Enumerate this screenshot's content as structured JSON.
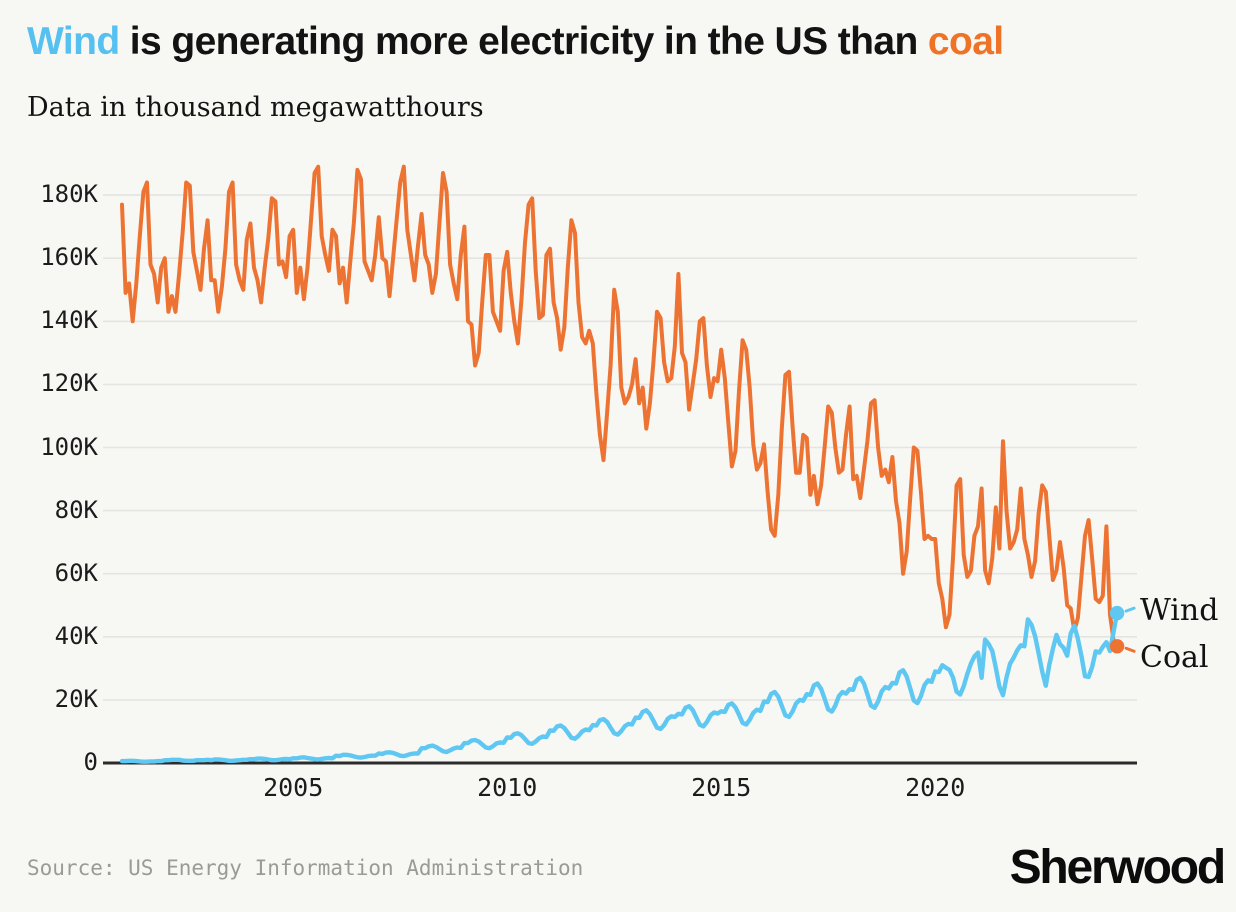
{
  "header": {
    "title_parts": [
      {
        "text": "Wind",
        "color": "#56c1f0"
      },
      {
        "text": " is generating more electricity in the US than ",
        "color": "#131313"
      },
      {
        "text": "coal",
        "color": "#ef7327"
      }
    ],
    "subtitle": "Data in thousand megawatthours"
  },
  "footer": {
    "source": "Source: US Energy Information Administration",
    "brand": "Sherwood"
  },
  "colors": {
    "background": "#f7f7f4",
    "wind": "#5ec8f2",
    "coal": "#ed7332",
    "gridline": "#e4e4e1",
    "axis": "#2b2b2b"
  },
  "chart_data": {
    "type": "line",
    "title": "Wind is generating more electricity in the US than coal",
    "subtitle": "Data in thousand megawatthours",
    "unit": "thousand megawatthours (values below in thousands, i.e. 177 = 177K)",
    "frequency": "monthly",
    "x_start_year": 2001,
    "x_end": "2024-04",
    "xticks": [
      2005,
      2010,
      2015,
      2020
    ],
    "yticks": [
      "0",
      "20K",
      "40K",
      "60K",
      "80K",
      "100K",
      "120K",
      "140K",
      "160K",
      "180K"
    ],
    "ytick_values": [
      0,
      20,
      40,
      60,
      80,
      100,
      120,
      140,
      160,
      180
    ],
    "ylim": [
      0,
      195
    ],
    "grid": "horizontal",
    "legend_position": "end-of-line labels with dots",
    "series": [
      {
        "name": "Coal",
        "color": "#ed7332",
        "values": [
          177,
          149,
          152,
          140,
          152,
          167,
          181,
          184,
          158,
          155,
          146,
          157,
          160,
          143,
          148,
          143,
          155,
          168,
          184,
          183,
          162,
          156,
          150,
          163,
          172,
          153,
          153,
          143,
          151,
          163,
          181,
          184,
          158,
          153,
          150,
          166,
          171,
          157,
          153,
          146,
          157,
          166,
          179,
          178,
          158,
          159,
          154,
          167,
          169,
          149,
          157,
          147,
          157,
          172,
          187,
          189,
          167,
          161,
          156,
          169,
          167,
          152,
          157,
          146,
          159,
          171,
          188,
          185,
          159,
          156,
          153,
          161,
          173,
          160,
          159,
          148,
          160,
          172,
          184,
          189,
          169,
          161,
          153,
          164,
          174,
          161,
          158,
          149,
          155,
          171,
          187,
          181,
          158,
          152,
          147,
          161,
          170,
          140,
          139,
          126,
          130,
          146,
          161,
          161,
          143,
          140,
          137,
          156,
          162,
          149,
          140,
          133,
          147,
          165,
          177,
          179,
          156,
          141,
          142,
          161,
          163,
          146,
          141,
          131,
          138,
          157,
          172,
          168,
          146,
          135,
          133,
          137,
          133,
          117,
          104,
          96,
          111,
          126,
          150,
          143,
          119,
          114,
          116,
          120,
          128,
          114,
          119,
          106,
          114,
          127,
          143,
          141,
          127,
          121,
          122,
          132,
          155,
          130,
          127,
          112,
          120,
          128,
          140,
          141,
          126,
          116,
          122,
          121,
          131,
          122,
          108,
          94,
          99,
          118,
          134,
          131,
          119,
          101,
          93,
          95,
          101,
          86,
          74,
          72,
          85,
          106,
          123,
          124,
          107,
          92,
          92,
          104,
          103,
          85,
          91,
          82,
          88,
          100,
          113,
          111,
          100,
          92,
          93,
          104,
          113,
          90,
          91,
          84,
          93,
          102,
          114,
          115,
          100,
          91,
          93,
          89,
          97,
          83,
          76,
          60,
          67,
          84,
          100,
          99,
          86,
          71,
          72,
          71,
          71,
          57,
          52,
          43,
          47,
          65,
          88,
          90,
          66,
          59,
          61,
          72,
          75,
          87,
          61,
          57,
          65,
          81,
          68,
          102,
          80,
          68,
          70,
          74,
          87,
          71,
          66,
          59,
          64,
          79,
          88,
          86,
          72,
          58,
          61,
          70,
          62,
          50,
          49,
          42,
          46,
          59,
          72,
          77,
          65,
          52,
          51,
          53,
          75,
          47,
          39,
          37
        ]
      },
      {
        "name": "Wind",
        "color": "#5ec8f2",
        "values": [
          0.6,
          0.6,
          0.7,
          0.7,
          0.6,
          0.5,
          0.4,
          0.4,
          0.5,
          0.5,
          0.6,
          0.6,
          0.9,
          0.9,
          1.0,
          1.0,
          1.0,
          0.8,
          0.7,
          0.7,
          0.7,
          0.9,
          0.9,
          0.9,
          1.0,
          0.9,
          1.1,
          1.1,
          1.0,
          0.9,
          0.7,
          0.7,
          0.8,
          0.9,
          1.0,
          1.0,
          1.2,
          1.2,
          1.4,
          1.4,
          1.3,
          1.1,
          0.9,
          0.9,
          1.0,
          1.2,
          1.3,
          1.2,
          1.5,
          1.5,
          1.7,
          1.8,
          1.6,
          1.4,
          1.2,
          1.1,
          1.3,
          1.5,
          1.6,
          1.5,
          2.3,
          2.2,
          2.6,
          2.6,
          2.4,
          2.1,
          1.8,
          1.7,
          1.9,
          2.2,
          2.3,
          2.3,
          3.0,
          2.9,
          3.3,
          3.4,
          3.2,
          2.8,
          2.3,
          2.2,
          2.5,
          2.9,
          3.0,
          3.0,
          4.7,
          4.7,
          5.3,
          5.5,
          5.1,
          4.4,
          3.7,
          3.5,
          4.0,
          4.6,
          4.9,
          4.8,
          6.3,
          6.3,
          7.1,
          7.3,
          6.8,
          5.9,
          4.9,
          4.7,
          5.3,
          6.2,
          6.5,
          6.4,
          8.1,
          8.0,
          9.2,
          9.4,
          8.8,
          7.6,
          6.3,
          6.1,
          6.8,
          7.9,
          8.4,
          8.2,
          10.3,
          10.2,
          11.6,
          11.9,
          11.1,
          9.6,
          8.0,
          7.7,
          8.6,
          10.0,
          10.6,
          10.4,
          12.0,
          11.9,
          13.6,
          13.9,
          13.0,
          11.2,
          9.4,
          9.0,
          10.1,
          11.7,
          12.4,
          12.2,
          14.4,
          14.3,
          16.2,
          16.7,
          15.5,
          13.4,
          11.2,
          10.8,
          12.0,
          14.0,
          14.8,
          14.6,
          15.6,
          15.4,
          17.5,
          18.0,
          16.8,
          14.5,
          12.1,
          11.6,
          13.0,
          15.1,
          16.0,
          15.7,
          16.4,
          16.2,
          18.4,
          18.9,
          17.6,
          15.3,
          12.7,
          12.2,
          13.7,
          15.9,
          16.9,
          16.5,
          19.5,
          19.3,
          21.9,
          22.5,
          21.0,
          18.1,
          15.1,
          14.6,
          16.3,
          18.9,
          20.0,
          19.7,
          21.8,
          21.6,
          24.6,
          25.2,
          23.5,
          20.4,
          17.0,
          16.3,
          18.2,
          21.2,
          22.5,
          22.0,
          23.4,
          23.2,
          26.3,
          27.0,
          25.2,
          21.8,
          18.2,
          17.5,
          19.5,
          22.7,
          24.1,
          23.6,
          25.4,
          25.2,
          28.7,
          29.4,
          27.4,
          23.7,
          19.8,
          19.0,
          21.2,
          24.7,
          26.2,
          25.7,
          29.0,
          28.8,
          31.0,
          30.2,
          29.5,
          27.1,
          22.6,
          21.7,
          24.3,
          28.2,
          31.5,
          33.8,
          35.0,
          27.0,
          39.1,
          37.7,
          35.5,
          30.2,
          24.2,
          21.5,
          27.1,
          31.5,
          33.4,
          35.7,
          37.3,
          37.0,
          45.5,
          43.8,
          40.2,
          34.8,
          29.0,
          24.5,
          31.1,
          36.2,
          40.6,
          37.7,
          36.5,
          34.0,
          41.0,
          43.5,
          39.3,
          34.0,
          27.5,
          27.3,
          30.4,
          35.4,
          35.0,
          36.8,
          38.3,
          35.5,
          41.5,
          47.5
        ]
      }
    ]
  }
}
